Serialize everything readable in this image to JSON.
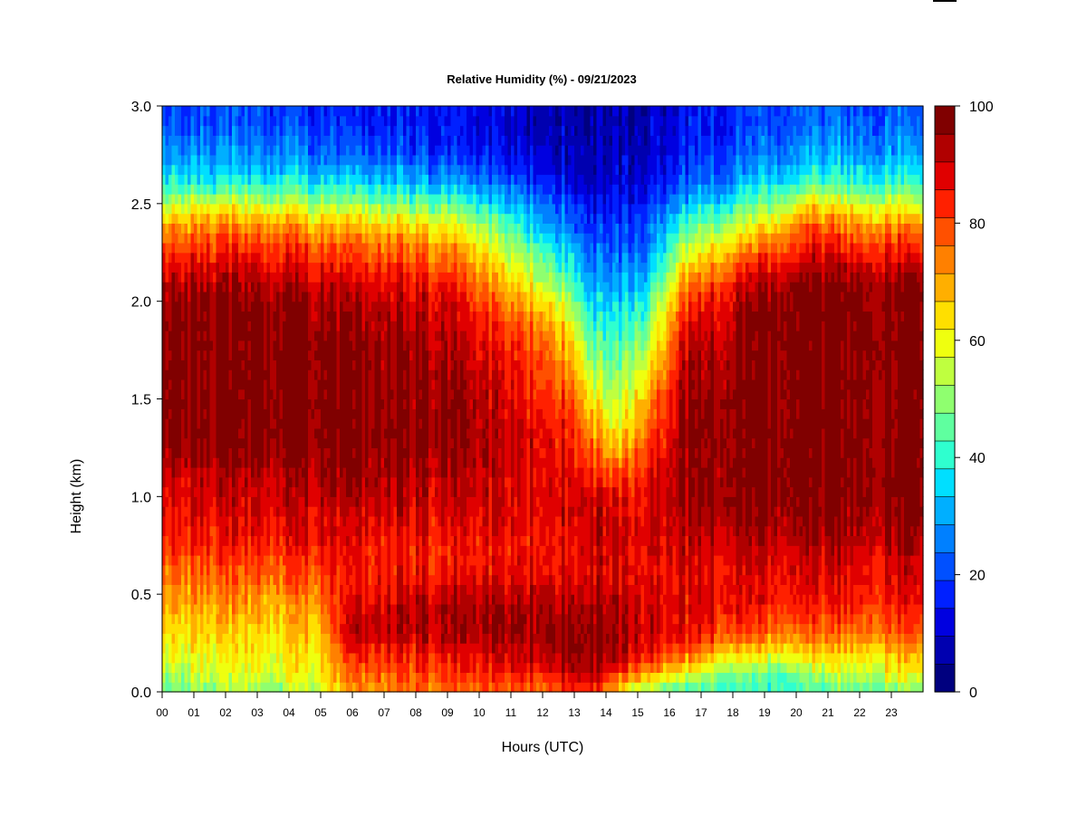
{
  "chart_data": {
    "type": "heatmap",
    "title": "Relative Humidity (%) - 09/21/2023",
    "xlabel": "Hours (UTC)",
    "ylabel": "Height (km)",
    "xlim": [
      0,
      24
    ],
    "ylim": [
      0,
      3.0
    ],
    "x_ticks": [
      "00",
      "01",
      "02",
      "03",
      "04",
      "05",
      "06",
      "07",
      "08",
      "09",
      "10",
      "11",
      "12",
      "13",
      "14",
      "15",
      "16",
      "17",
      "18",
      "19",
      "20",
      "21",
      "22",
      "23"
    ],
    "y_ticks": [
      "0.0",
      "0.5",
      "1.0",
      "1.5",
      "2.0",
      "2.5",
      "3.0"
    ],
    "colorbar": {
      "min": 0,
      "max": 100,
      "step": 5,
      "tick_labels": [
        "0",
        "20",
        "40",
        "60",
        "80",
        "100"
      ],
      "colors": [
        "#00007F",
        "#0000B0",
        "#0000E0",
        "#0020FF",
        "#0050FF",
        "#0080FF",
        "#00AFFF",
        "#00DFFF",
        "#2FFFCF",
        "#5FFF9F",
        "#8FFF6F",
        "#BFFF3F",
        "#EFFF0F",
        "#FFDF00",
        "#FFAF00",
        "#FF8000",
        "#FF5000",
        "#FF2000",
        "#E00000",
        "#B00000",
        "#800000"
      ]
    },
    "profile_heights_km": [
      0.0,
      0.1,
      0.2,
      0.3,
      0.4,
      0.5,
      0.6,
      0.7,
      0.8,
      0.9,
      1.0,
      1.1,
      1.2,
      1.3,
      1.4,
      1.5,
      1.6,
      1.7,
      1.8,
      1.9,
      2.0,
      2.1,
      2.2,
      2.3,
      2.4,
      2.5,
      2.6,
      2.7,
      2.8,
      2.9,
      3.0
    ],
    "profiles": [
      {
        "hour": 0,
        "rh": [
          45,
          55,
          60,
          63,
          68,
          72,
          76,
          80,
          85,
          87,
          88,
          90,
          95,
          98,
          98,
          98,
          98,
          98,
          98,
          98,
          97,
          92,
          85,
          78,
          70,
          55,
          40,
          32,
          26,
          22,
          20
        ]
      },
      {
        "hour": 2,
        "rh": [
          50,
          58,
          62,
          65,
          70,
          74,
          78,
          82,
          86,
          88,
          90,
          92,
          96,
          98,
          98,
          98,
          98,
          98,
          98,
          98,
          97,
          94,
          88,
          82,
          72,
          58,
          40,
          32,
          26,
          22,
          20
        ]
      },
      {
        "hour": 4,
        "rh": [
          50,
          60,
          62,
          65,
          68,
          72,
          78,
          82,
          86,
          88,
          90,
          92,
          96,
          98,
          98,
          98,
          98,
          98,
          98,
          97,
          95,
          92,
          86,
          80,
          70,
          55,
          40,
          30,
          25,
          22,
          18
        ]
      },
      {
        "hour": 5,
        "rh": [
          55,
          62,
          65,
          68,
          72,
          76,
          80,
          84,
          88,
          90,
          92,
          94,
          96,
          98,
          98,
          98,
          98,
          98,
          97,
          96,
          94,
          90,
          84,
          76,
          66,
          52,
          38,
          28,
          22,
          18,
          16
        ]
      },
      {
        "hour": 6,
        "rh": [
          72,
          78,
          85,
          92,
          92,
          88,
          86,
          86,
          88,
          90,
          94,
          96,
          98,
          98,
          98,
          98,
          98,
          98,
          98,
          96,
          94,
          90,
          84,
          78,
          68,
          52,
          38,
          28,
          22,
          18,
          16
        ]
      },
      {
        "hour": 9,
        "rh": [
          75,
          82,
          86,
          93,
          93,
          90,
          86,
          84,
          86,
          88,
          90,
          92,
          94,
          96,
          96,
          96,
          95,
          94,
          92,
          90,
          88,
          84,
          78,
          70,
          60,
          45,
          32,
          22,
          16,
          14,
          14
        ]
      },
      {
        "hour": 12,
        "rh": [
          77,
          86,
          92,
          96,
          95,
          92,
          88,
          86,
          86,
          88,
          88,
          88,
          88,
          88,
          86,
          84,
          82,
          80,
          78,
          72,
          65,
          56,
          48,
          40,
          32,
          25,
          18,
          12,
          10,
          8,
          8
        ]
      },
      {
        "hour": 13,
        "rh": [
          82,
          92,
          97,
          98,
          96,
          92,
          88,
          86,
          88,
          90,
          90,
          88,
          86,
          84,
          82,
          78,
          74,
          70,
          64,
          58,
          50,
          42,
          36,
          30,
          24,
          18,
          14,
          10,
          8,
          7,
          7
        ]
      },
      {
        "hour": 13.5,
        "rh": [
          84,
          93,
          97,
          97,
          95,
          92,
          90,
          90,
          92,
          92,
          90,
          86,
          82,
          76,
          70,
          64,
          58,
          52,
          46,
          40,
          36,
          30,
          26,
          22,
          18,
          14,
          10,
          8,
          7,
          6,
          6
        ]
      },
      {
        "hour": 14.3,
        "rh": [
          62,
          82,
          92,
          94,
          92,
          90,
          88,
          88,
          88,
          88,
          86,
          80,
          70,
          62,
          56,
          52,
          48,
          44,
          40,
          36,
          32,
          28,
          24,
          20,
          17,
          14,
          10,
          8,
          6,
          6,
          6
        ]
      },
      {
        "hour": 15.3,
        "rh": [
          50,
          72,
          88,
          90,
          90,
          88,
          88,
          88,
          88,
          88,
          88,
          86,
          82,
          78,
          74,
          70,
          64,
          58,
          52,
          46,
          40,
          34,
          28,
          24,
          20,
          16,
          12,
          10,
          9,
          8,
          8
        ]
      },
      {
        "hour": 16.5,
        "rh": [
          42,
          60,
          78,
          86,
          88,
          88,
          88,
          90,
          92,
          94,
          95,
          96,
          96,
          96,
          96,
          95,
          94,
          92,
          90,
          86,
          80,
          72,
          62,
          52,
          42,
          32,
          22,
          18,
          16,
          14,
          14
        ]
      },
      {
        "hour": 18,
        "rh": [
          40,
          50,
          66,
          80,
          86,
          88,
          88,
          90,
          92,
          95,
          97,
          97,
          97,
          97,
          97,
          97,
          96,
          95,
          94,
          92,
          90,
          85,
          76,
          65,
          52,
          40,
          30,
          24,
          20,
          18,
          18
        ]
      },
      {
        "hour": 19,
        "rh": [
          38,
          46,
          62,
          76,
          82,
          86,
          88,
          90,
          94,
          96,
          97,
          98,
          98,
          98,
          98,
          98,
          98,
          98,
          98,
          98,
          97,
          92,
          84,
          74,
          62,
          48,
          36,
          28,
          24,
          20,
          20
        ]
      },
      {
        "hour": 20.5,
        "rh": [
          42,
          52,
          64,
          76,
          82,
          86,
          88,
          90,
          94,
          96,
          98,
          98,
          98,
          98,
          98,
          98,
          98,
          98,
          98,
          98,
          98,
          96,
          90,
          84,
          76,
          62,
          44,
          34,
          28,
          24,
          22
        ]
      },
      {
        "hour": 22,
        "rh": [
          45,
          58,
          66,
          76,
          82,
          86,
          88,
          90,
          94,
          96,
          98,
          98,
          98,
          98,
          98,
          98,
          98,
          98,
          98,
          98,
          98,
          96,
          90,
          82,
          72,
          58,
          42,
          34,
          28,
          24,
          22
        ]
      },
      {
        "hour": 24,
        "rh": [
          48,
          62,
          70,
          78,
          84,
          88,
          90,
          92,
          96,
          97,
          98,
          98,
          98,
          98,
          98,
          98,
          98,
          98,
          98,
          98,
          98,
          96,
          90,
          82,
          72,
          56,
          42,
          34,
          28,
          24,
          22
        ]
      }
    ]
  }
}
